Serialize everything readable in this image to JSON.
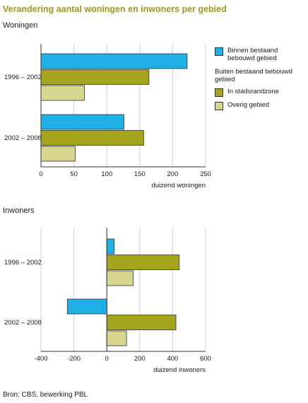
{
  "title": "Verandering aantal woningen en inwoners per gebied",
  "source": "Bron: CBS, bewerking PBL",
  "legend": {
    "binnen": "Binnen bestaand bebouwd gebied",
    "buiten_heading": "Buiten bestaand bebouwd gebied",
    "stadsrand": "In stadsrandzone",
    "overig": "Overig gebied"
  },
  "colors": {
    "binnen": "#1fb1e6",
    "stadsrand": "#a4a41e",
    "overig": "#d6d68f",
    "grid": "#cfcfcf"
  },
  "chart_data": [
    {
      "type": "bar",
      "orientation": "horizontal",
      "subtitle": "Woningen",
      "xlabel": "duizend woningen",
      "categories": [
        "1996 – 2002",
        "2002 – 2008"
      ],
      "series": [
        {
          "name": "Binnen bestaand bebouwd gebied",
          "values": [
            222,
            126
          ]
        },
        {
          "name": "In stadsrandzone",
          "values": [
            164,
            156
          ]
        },
        {
          "name": "Overig gebied",
          "values": [
            66,
            52
          ]
        }
      ],
      "xlim": [
        0,
        250
      ],
      "xticks": [
        0,
        50,
        100,
        150,
        200,
        250
      ],
      "grid": true
    },
    {
      "type": "bar",
      "orientation": "horizontal",
      "subtitle": "Inwoners",
      "xlabel": "duizend inwoners",
      "categories": [
        "1996 – 2002",
        "2002 – 2008"
      ],
      "series": [
        {
          "name": "Binnen bestaand bebouwd gebied",
          "values": [
            45,
            -240
          ]
        },
        {
          "name": "In stadsrandzone",
          "values": [
            440,
            420
          ]
        },
        {
          "name": "Overig gebied",
          "values": [
            160,
            120
          ]
        }
      ],
      "xlim": [
        -400,
        600
      ],
      "xticks": [
        -400,
        -200,
        0,
        200,
        400,
        600
      ],
      "grid": true
    }
  ]
}
